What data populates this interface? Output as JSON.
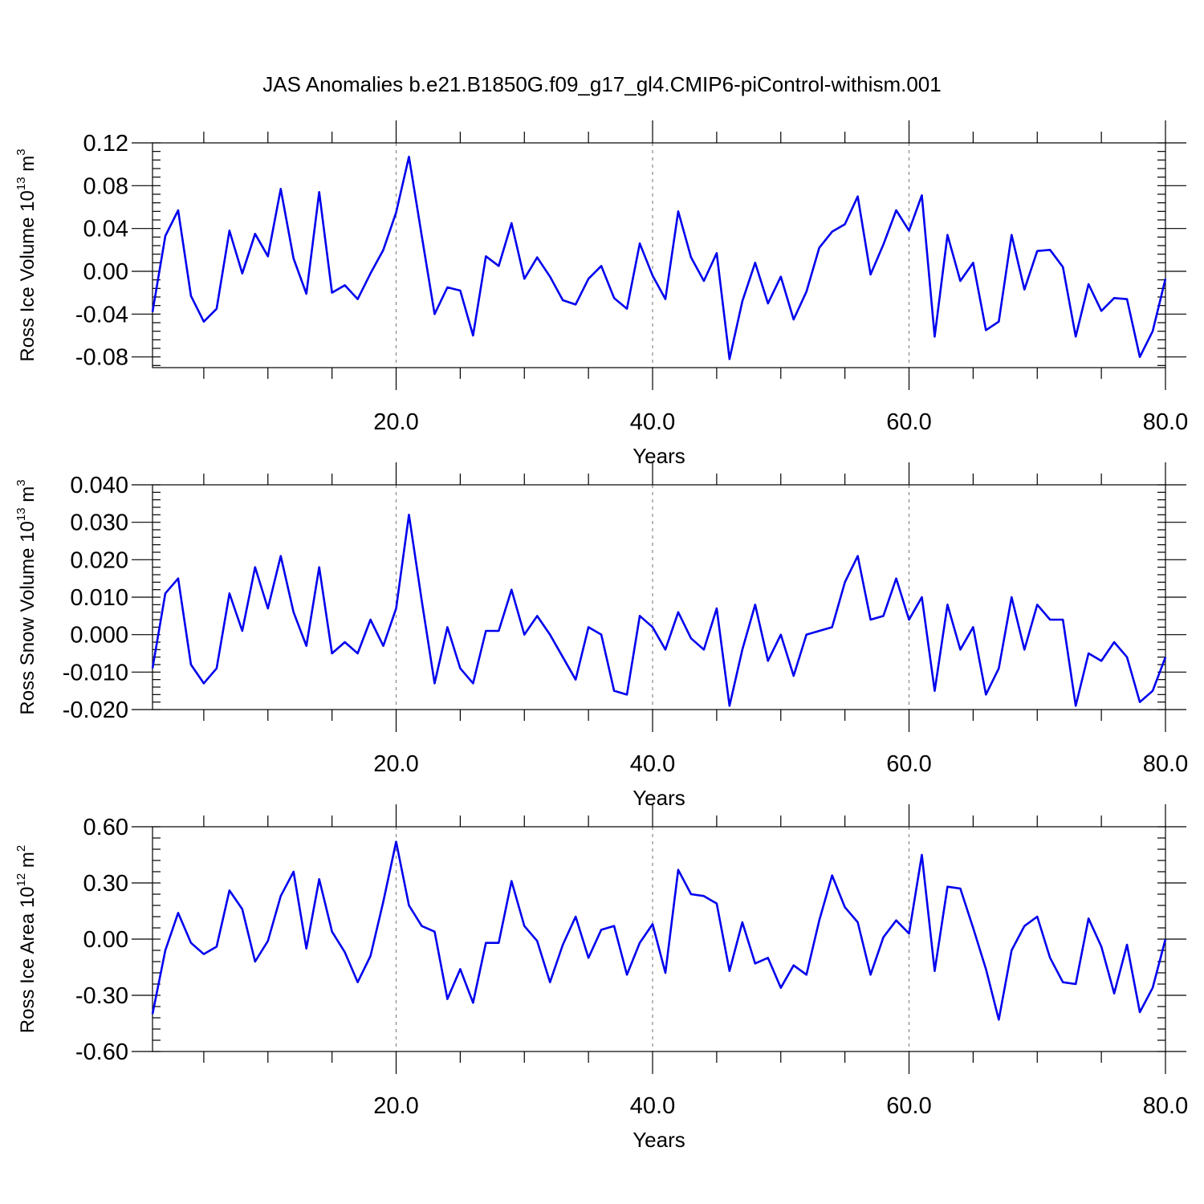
{
  "title": "JAS Anomalies b.e21.B1850G.f09_g17_gl4.CMIP6-piControl-withism.001",
  "colors": {
    "line": "#0000ee",
    "grid": "#888888"
  },
  "chart_data": [
    {
      "type": "line",
      "ylabel": "Ross Ice Volume 10",
      "ylabel_sup": "13",
      "ylabel_unit": " m",
      "ylabel_unit_sup": "3",
      "xlabel": "Years",
      "xlim": [
        1,
        80
      ],
      "ylim": [
        -0.09,
        0.12
      ],
      "yticks": [
        -0.08,
        -0.04,
        0.0,
        0.04,
        0.08,
        0.12
      ],
      "ytick_labels": [
        "-0.08",
        "-0.04",
        "0.00",
        "0.04",
        "0.08",
        "0.12"
      ],
      "xticks": [
        20,
        40,
        60,
        80
      ],
      "xtick_labels": [
        "20.0",
        "40.0",
        "60.0",
        "80.0"
      ],
      "grid_x": [
        20,
        40,
        60
      ],
      "x_start": 1,
      "values": [
        -0.038,
        0.033,
        0.057,
        -0.023,
        -0.047,
        -0.035,
        0.038,
        -0.002,
        0.035,
        0.014,
        0.077,
        0.012,
        -0.021,
        0.074,
        -0.02,
        -0.013,
        -0.026,
        -0.002,
        0.02,
        0.055,
        0.107,
        0.033,
        -0.04,
        -0.015,
        -0.018,
        -0.06,
        0.014,
        0.005,
        0.045,
        -0.007,
        0.013,
        -0.005,
        -0.027,
        -0.031,
        -0.007,
        0.005,
        -0.025,
        -0.035,
        0.026,
        -0.004,
        -0.026,
        0.056,
        0.013,
        -0.009,
        0.017,
        -0.082,
        -0.028,
        0.008,
        -0.03,
        -0.005,
        -0.045,
        -0.019,
        0.022,
        0.037,
        0.044,
        0.07,
        -0.003,
        0.025,
        0.057,
        0.038,
        0.071,
        -0.061,
        0.034,
        -0.009,
        0.008,
        -0.055,
        -0.047,
        0.034,
        -0.017,
        0.019,
        0.02,
        0.004,
        -0.061,
        -0.012,
        -0.037,
        -0.025,
        -0.026,
        -0.08,
        -0.056,
        -0.007
      ]
    },
    {
      "type": "line",
      "ylabel": "Ross Snow Volume 10",
      "ylabel_sup": "13",
      "ylabel_unit": " m",
      "ylabel_unit_sup": "3",
      "xlabel": "Years",
      "xlim": [
        1,
        80
      ],
      "ylim": [
        -0.02,
        0.04
      ],
      "yticks": [
        -0.02,
        -0.01,
        0.0,
        0.01,
        0.02,
        0.03,
        0.04
      ],
      "ytick_labels": [
        "-0.020",
        "-0.010",
        "0.000",
        "0.010",
        "0.020",
        "0.030",
        "0.040"
      ],
      "xticks": [
        20,
        40,
        60,
        80
      ],
      "xtick_labels": [
        "20.0",
        "40.0",
        "60.0",
        "80.0"
      ],
      "grid_x": [
        20,
        40,
        60
      ],
      "x_start": 1,
      "values": [
        -0.009,
        0.011,
        0.015,
        -0.008,
        -0.013,
        -0.009,
        0.011,
        0.001,
        0.018,
        0.007,
        0.021,
        0.006,
        -0.003,
        0.018,
        -0.005,
        -0.002,
        -0.005,
        0.004,
        -0.003,
        0.007,
        0.032,
        0.009,
        -0.013,
        0.002,
        -0.009,
        -0.013,
        0.001,
        0.001,
        0.012,
        0.0,
        0.005,
        0.0,
        -0.006,
        -0.012,
        0.002,
        0.0,
        -0.015,
        -0.016,
        0.005,
        0.002,
        -0.004,
        0.006,
        -0.001,
        -0.004,
        0.007,
        -0.019,
        -0.004,
        0.008,
        -0.007,
        0.0,
        -0.011,
        0.0,
        0.001,
        0.002,
        0.014,
        0.021,
        0.004,
        0.005,
        0.015,
        0.004,
        0.01,
        -0.015,
        0.008,
        -0.004,
        0.002,
        -0.016,
        -0.009,
        0.01,
        -0.004,
        0.008,
        0.004,
        0.004,
        -0.019,
        -0.005,
        -0.007,
        -0.002,
        -0.006,
        -0.018,
        -0.015,
        -0.006
      ]
    },
    {
      "type": "line",
      "ylabel": "Ross Ice Area 10",
      "ylabel_sup": "12",
      "ylabel_unit": " m",
      "ylabel_unit_sup": "2",
      "xlabel": "Years",
      "xlim": [
        1,
        80
      ],
      "ylim": [
        -0.6,
        0.6
      ],
      "yticks": [
        -0.6,
        -0.3,
        0.0,
        0.3,
        0.6
      ],
      "ytick_labels": [
        "-0.60",
        "-0.30",
        "0.00",
        "0.30",
        "0.60"
      ],
      "xticks": [
        20,
        40,
        60,
        80
      ],
      "xtick_labels": [
        "20.0",
        "40.0",
        "60.0",
        "80.0"
      ],
      "grid_x": [
        20,
        40,
        60
      ],
      "x_start": 1,
      "values": [
        -0.4,
        -0.06,
        0.14,
        -0.02,
        -0.08,
        -0.04,
        0.26,
        0.16,
        -0.12,
        -0.01,
        0.23,
        0.36,
        -0.05,
        0.32,
        0.04,
        -0.07,
        -0.23,
        -0.09,
        0.2,
        0.52,
        0.18,
        0.07,
        0.04,
        -0.32,
        -0.16,
        -0.34,
        -0.02,
        -0.02,
        0.31,
        0.07,
        -0.01,
        -0.23,
        -0.03,
        0.12,
        -0.1,
        0.05,
        0.07,
        -0.19,
        -0.02,
        0.08,
        -0.18,
        0.37,
        0.24,
        0.23,
        0.19,
        -0.17,
        0.09,
        -0.13,
        -0.1,
        -0.26,
        -0.14,
        -0.19,
        0.1,
        0.34,
        0.17,
        0.09,
        -0.19,
        0.01,
        0.1,
        0.03,
        0.45,
        -0.17,
        0.28,
        0.27,
        0.06,
        -0.16,
        -0.43,
        -0.06,
        0.07,
        0.12,
        -0.1,
        -0.23,
        -0.24,
        0.11,
        -0.04,
        -0.29,
        -0.03,
        -0.39,
        -0.26,
        0.0
      ]
    }
  ]
}
